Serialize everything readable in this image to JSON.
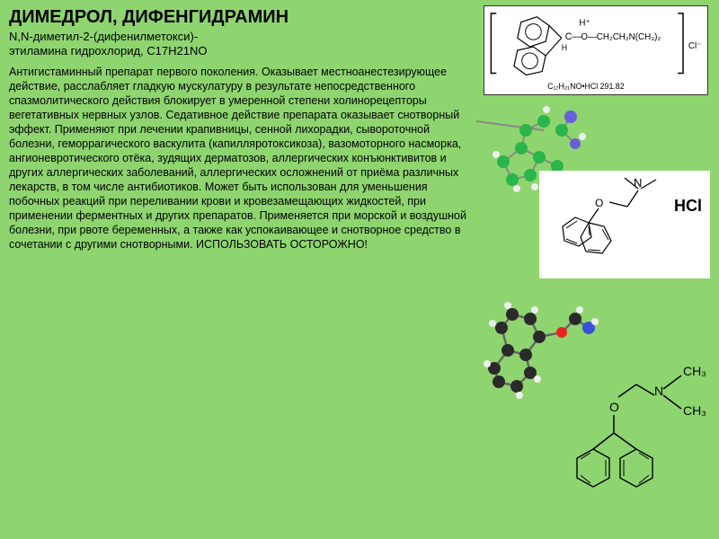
{
  "title": "ДИМЕДРОЛ, ДИФЕНГИДРАМИН",
  "subtitle": "N,N-диметил-2-(дифенилметокси)-\nэтиламина гидрохлорид, C17H21NO",
  "description": "Антигистаминный препарат первого поколения. Оказывает местноанестезирующее действие, расслабляет гладкую мускулатуру в результате непосредственного спазмолитического действия блокирует в умеренной степени холинорецепторы вегетативных нервных узлов. Седативное действие препарата оказывает снотворный эффект. Применяют при лечении крапивницы, сенной лихорадки, сывороточной болезни, геморрагического васкулита (капилляротоксикоза), вазомоторного насморка, ангионевротического отёка, зудящих дерматозов, аллергических конъюнктивитов и других аллергических заболеваний, аллергических осложнений от приёма различных лекарств, в том числе антибиотиков. Может быть использован для уменьшения побочных реакций при переливании крови и кровезамещающих жидкостей, при применении ферментных и других препаратов. Применяется при морской и воздушной болезни, при рвоте беременных, а также как успокаивающее и снотворное средство в сочетании с другими снотворными. ИСПОЛЬЗОВАТЬ ОСТОРОЖНО!",
  "chem_labels": {
    "formula_top": "C₁₇H₂₁NO•HCl 291.82",
    "hcl": "HCl",
    "ch3_1": "CH₃",
    "ch3_2": "CH₃",
    "n": "N",
    "o": "O",
    "cl": "Cl⁻",
    "chain": "O—CH₂CH₂N(CH₃)₂",
    "hplus": "H⁺"
  },
  "colors": {
    "bg": "#8ed56f",
    "text": "#000000",
    "white": "#ffffff",
    "carbon": "#2a2a2a",
    "hydrogen": "#e8e8e8",
    "nitrogen": "#3a4fd8",
    "oxygen": "#e22",
    "green_atom": "#2bb54a",
    "bond": "#999"
  }
}
